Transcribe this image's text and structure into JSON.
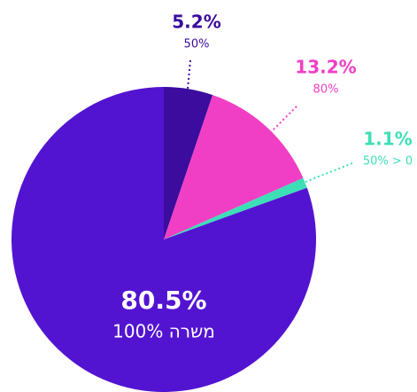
{
  "chart_data": {
    "type": "pie",
    "categories": [
      "50%",
      "80%",
      "50% > 0",
      "100% משרה"
    ],
    "values": [
      5.2,
      13.2,
      1.1,
      80.5
    ],
    "value_labels": [
      "5.2%",
      "13.2%",
      "1.1%",
      "80.5%"
    ],
    "colors": [
      "#3b0c9e",
      "#f03fc4",
      "#3ddfb7",
      "#5314d1"
    ]
  }
}
